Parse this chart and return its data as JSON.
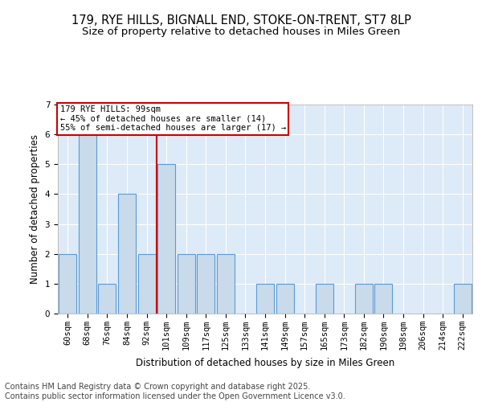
{
  "title1": "179, RYE HILLS, BIGNALL END, STOKE-ON-TRENT, ST7 8LP",
  "title2": "Size of property relative to detached houses in Miles Green",
  "xlabel": "Distribution of detached houses by size in Miles Green",
  "ylabel": "Number of detached properties",
  "categories": [
    "60sqm",
    "68sqm",
    "76sqm",
    "84sqm",
    "92sqm",
    "101sqm",
    "109sqm",
    "117sqm",
    "125sqm",
    "133sqm",
    "141sqm",
    "149sqm",
    "157sqm",
    "165sqm",
    "173sqm",
    "182sqm",
    "190sqm",
    "198sqm",
    "206sqm",
    "214sqm",
    "222sqm"
  ],
  "values": [
    2,
    6,
    1,
    4,
    2,
    5,
    2,
    2,
    2,
    0,
    1,
    1,
    0,
    1,
    0,
    1,
    1,
    0,
    0,
    0,
    1
  ],
  "bar_color": "#c9daea",
  "bar_edge_color": "#5b9bd5",
  "bar_linewidth": 0.8,
  "reference_line_color": "#cc0000",
  "annotation_line1": "179 RYE HILLS: 99sqm",
  "annotation_line2": "← 45% of detached houses are smaller (14)",
  "annotation_line3": "55% of semi-detached houses are larger (17) →",
  "annotation_box_color": "#ffffff",
  "annotation_box_edge": "#cc0000",
  "ylim": [
    0,
    7
  ],
  "yticks": [
    0,
    1,
    2,
    3,
    4,
    5,
    6,
    7
  ],
  "bg_color": "#ddeaf7",
  "grid_color": "#ffffff",
  "footer_line1": "Contains HM Land Registry data © Crown copyright and database right 2025.",
  "footer_line2": "Contains public sector information licensed under the Open Government Licence v3.0.",
  "title_fontsize": 10.5,
  "subtitle_fontsize": 9.5,
  "axis_label_fontsize": 8.5,
  "tick_fontsize": 7.5,
  "footer_fontsize": 7
}
